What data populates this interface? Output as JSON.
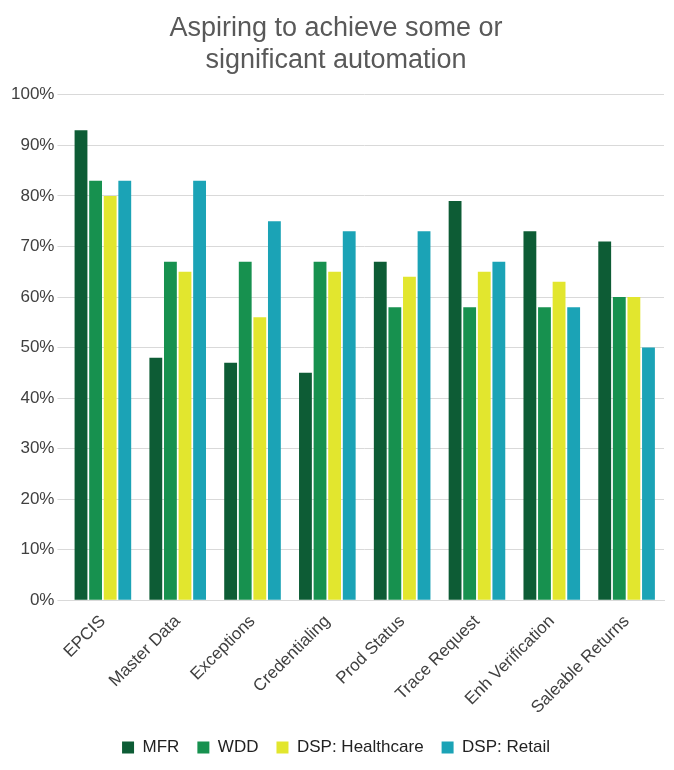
{
  "chart_data": {
    "type": "bar",
    "title": [
      "Aspiring to achieve some or",
      "significant automation"
    ],
    "categories": [
      "EPCIS",
      "Master Data",
      "Exceptions",
      "Credentialing",
      "Prod Status",
      "Trace Request",
      "Enh Verification",
      "Saleable Returns"
    ],
    "series": [
      {
        "name": "MFR",
        "color": "#0d5c35",
        "values": [
          93,
          48,
          47,
          45,
          67,
          79,
          73,
          71
        ]
      },
      {
        "name": "WDD",
        "color": "#17914f",
        "values": [
          83,
          67,
          67,
          67,
          58,
          58,
          58,
          60
        ]
      },
      {
        "name": "DSP: Healthcare",
        "color": "#e2e62e",
        "values": [
          80,
          65,
          56,
          65,
          64,
          65,
          63,
          60
        ]
      },
      {
        "name": "DSP: Retail",
        "color": "#1ba3b6",
        "values": [
          83,
          83,
          75,
          73,
          73,
          67,
          58,
          50
        ]
      }
    ],
    "ylim": [
      0,
      100
    ],
    "yticks": [
      {
        "value": 0,
        "label": "0%"
      },
      {
        "value": 10,
        "label": "10%"
      },
      {
        "value": 20,
        "label": "20%"
      },
      {
        "value": 30,
        "label": "30%"
      },
      {
        "value": 40,
        "label": "40%"
      },
      {
        "value": 50,
        "label": "50%"
      },
      {
        "value": 60,
        "label": "60%"
      },
      {
        "value": 70,
        "label": "70%"
      },
      {
        "value": 80,
        "label": "80%"
      },
      {
        "value": 90,
        "label": "90%"
      },
      {
        "value": 100,
        "label": "100%"
      }
    ],
    "grid": true,
    "legend": "bottom"
  }
}
